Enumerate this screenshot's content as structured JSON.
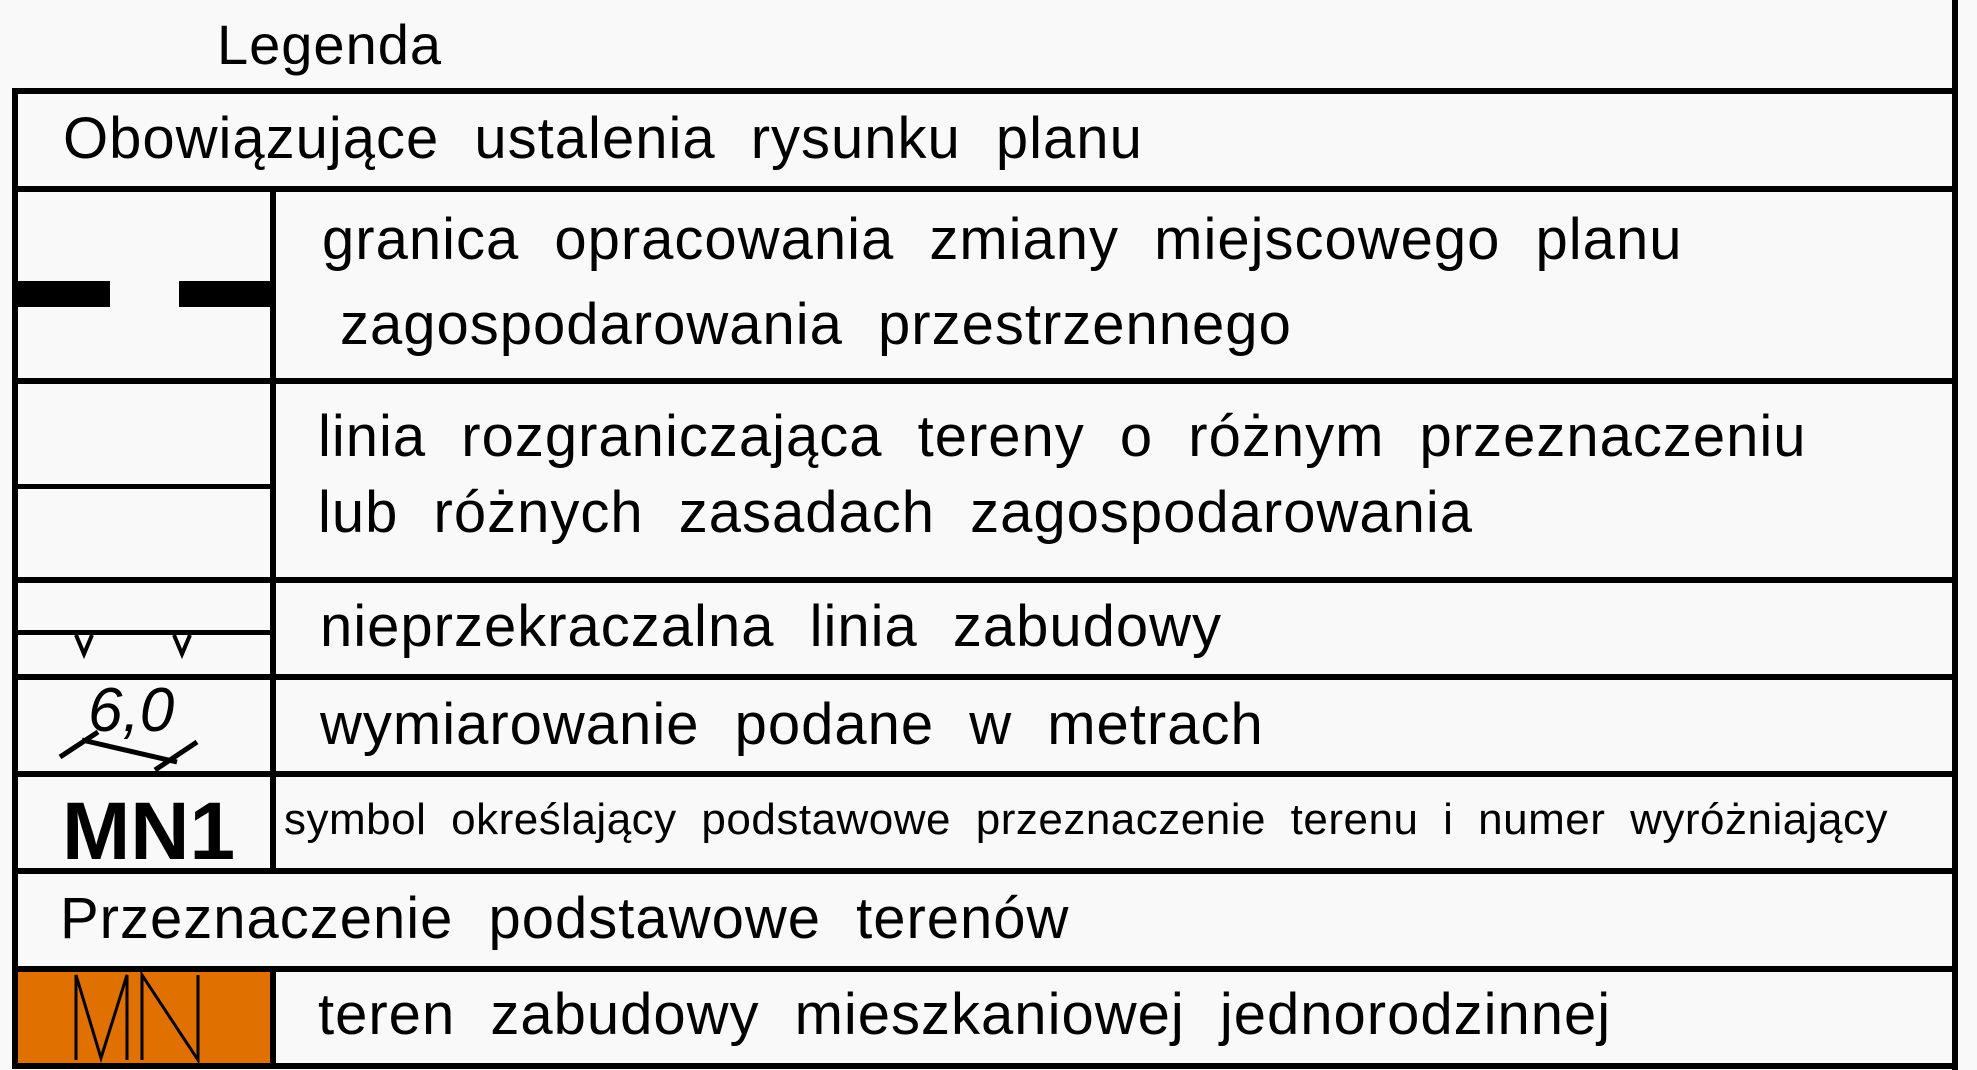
{
  "title": "Legenda",
  "sections": [
    {
      "heading": "Obowiązujące ustalenia rysunku planu"
    },
    {
      "heading": "Przeznaczenie podstawowe terenów"
    }
  ],
  "items": [
    {
      "symbol": "dashed-boundary-line",
      "lines": [
        "granica opracowania zmiany miejscowego planu",
        "zagospodarowania przestrzennego"
      ]
    },
    {
      "symbol": "solid-thin-line",
      "lines": [
        "linia rozgraniczająca tereny o różnym przeznaczeniu",
        "lub różnych zasadach zagospodarowania"
      ]
    },
    {
      "symbol": "line-with-v-marks",
      "lines": [
        "nieprzekraczalna linia zabudowy"
      ]
    },
    {
      "symbol": "dimension",
      "symbol_text": "6,0",
      "lines": [
        "wymiarowanie podane w metrach"
      ]
    },
    {
      "symbol": "bold-label",
      "symbol_text": "MN1",
      "lines": [
        "symbol określający podstawowe przeznaczenie terenu i numer wyróżniający"
      ]
    },
    {
      "symbol": "orange-fill",
      "symbol_text": "MN",
      "fill_color": "#e07000",
      "lines": [
        "teren zabudowy mieszkaniowej jednorodzinnej"
      ]
    }
  ]
}
